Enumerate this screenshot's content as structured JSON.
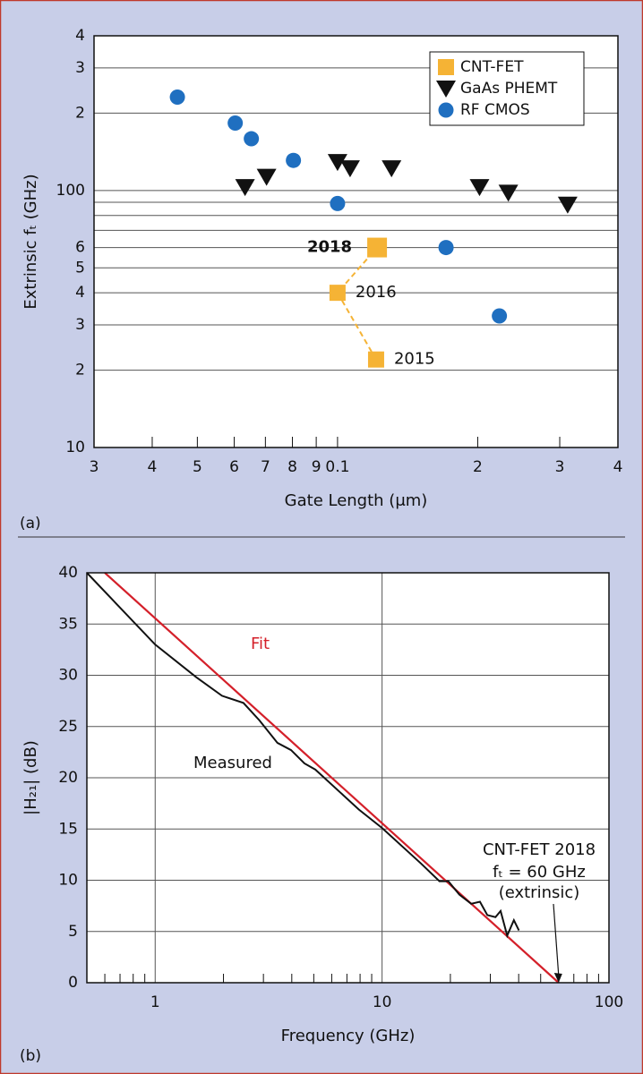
{
  "chart_data": [
    {
      "type": "scatter",
      "panel_label": "(a)",
      "xlabel": "Gate Length (μm)",
      "ylabel": "Extrinsic fₜ (GHz)",
      "xscale": "log",
      "yscale": "log",
      "xlim": [
        0.03,
        0.4
      ],
      "ylim": [
        10,
        400
      ],
      "xticks": [
        {
          "value": 0.03,
          "label": "3"
        },
        {
          "value": 0.04,
          "label": "4"
        },
        {
          "value": 0.05,
          "label": "5"
        },
        {
          "value": 0.06,
          "label": "6"
        },
        {
          "value": 0.07,
          "label": "7"
        },
        {
          "value": 0.08,
          "label": "8"
        },
        {
          "value": 0.09,
          "label": "9"
        },
        0.1,
        {
          "value": 0.2,
          "label": "2"
        },
        {
          "value": 0.3,
          "label": "3"
        },
        {
          "value": 0.4,
          "label": "4"
        }
      ],
      "yticks": [
        10,
        {
          "value": 20,
          "label": "2"
        },
        {
          "value": 30,
          "label": "3"
        },
        {
          "value": 40,
          "label": "4"
        },
        {
          "value": 50,
          "label": "5"
        },
        {
          "value": 60,
          "label": "6"
        },
        100,
        {
          "value": 200,
          "label": "2"
        },
        {
          "value": 300,
          "label": "3"
        },
        {
          "value": 400,
          "label": "4"
        }
      ],
      "yminor": [
        70,
        80,
        90
      ],
      "grid": "y",
      "legend": "upper right",
      "series": [
        {
          "name": "CNT-FET",
          "color": "#f5b335",
          "marker": "square",
          "line": "dashed",
          "x": [
            0.121,
            0.1,
            0.1216
          ],
          "values": [
            22,
            40,
            60
          ],
          "labels": [
            "2015",
            "2016",
            "2018"
          ]
        },
        {
          "name": "GaAs PHEMT",
          "color": "#111111",
          "marker": "triangle-down",
          "x": [
            0.0633,
            0.0704,
            0.1,
            0.1064,
            0.1306,
            0.2018,
            0.2327,
            0.312
          ],
          "values": [
            103,
            113,
            129,
            122,
            122,
            103,
            98,
            88
          ]
        },
        {
          "name": "RF CMOS",
          "color": "#1f6fc0",
          "marker": "circle",
          "x": [
            0.0453,
            0.0603,
            0.0653,
            0.0804,
            0.1,
            0.171,
            0.2226
          ],
          "values": [
            231,
            183,
            159,
            131,
            89,
            60,
            32.5
          ]
        }
      ]
    },
    {
      "type": "line",
      "panel_label": "(b)",
      "xlabel": "Frequency (GHz)",
      "ylabel": "|H₂₁| (dB)",
      "xscale": "log",
      "xlim": [
        0.5,
        100
      ],
      "ylim": [
        0,
        40
      ],
      "xticks": [
        1,
        10,
        100
      ],
      "xminor": [
        0.6,
        0.7,
        0.8,
        0.9,
        2,
        3,
        4,
        5,
        6,
        7,
        8,
        9,
        20,
        30,
        40,
        50,
        60,
        70,
        80,
        90
      ],
      "yticks": [
        0,
        5,
        10,
        15,
        20,
        25,
        30,
        35,
        40
      ],
      "grid": true,
      "series": [
        {
          "name": "Fit",
          "color": "#d4202a",
          "x": [
            0.6,
            60
          ],
          "values": [
            40,
            0
          ]
        },
        {
          "name": "Measured",
          "color": "#111111",
          "x": [
            0.5,
            1,
            1.52,
            1.97,
            2.45,
            2.88,
            3.46,
            3.97,
            4.55,
            5.08,
            7.9,
            10,
            14.9,
            17.9,
            19.6,
            21.9,
            24.7,
            27.0,
            29.1,
            31.6,
            33.3,
            35.6,
            38.1,
            40.1
          ],
          "values": [
            40,
            33,
            29.8,
            28.0,
            27.3,
            25.6,
            23.4,
            22.7,
            21.4,
            20.8,
            16.9,
            15.1,
            11.6,
            9.9,
            9.9,
            8.6,
            7.7,
            7.9,
            6.6,
            6.4,
            7.0,
            4.6,
            6.1,
            5.1
          ]
        }
      ],
      "annotations": [
        "CNT-FET 2018",
        "fₜ = 60 GHz",
        "(extrinsic)"
      ]
    }
  ]
}
